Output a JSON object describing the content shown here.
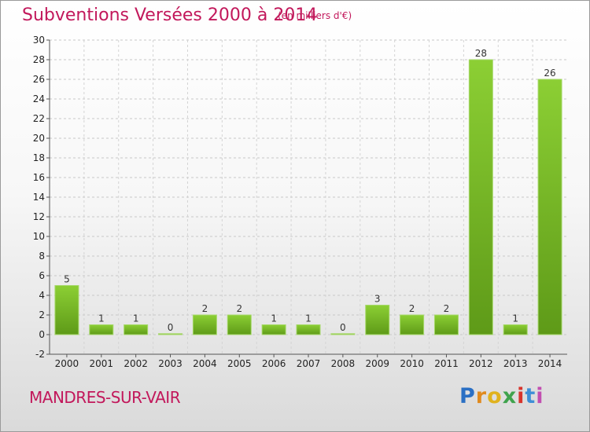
{
  "title": "Subventions Versées 2000 à 2014",
  "subtitle": "(en milliers d'€)",
  "commune": "MANDRES-SUR-VAIR",
  "logo": {
    "letters": [
      "P",
      "r",
      "o",
      "x",
      "i",
      "t",
      "i"
    ],
    "colors": [
      "#2a6fc4",
      "#e08a1e",
      "#e0b21e",
      "#3fa34d",
      "#d8342c",
      "#3f8fd6",
      "#c24fb0"
    ]
  },
  "colors": {
    "bar": "#7fbf2a",
    "bar_dark": "#5e9a18",
    "accent": "#c2185b"
  },
  "chart_data": {
    "type": "bar",
    "categories": [
      "2000",
      "2001",
      "2002",
      "2003",
      "2004",
      "2005",
      "2006",
      "2007",
      "2008",
      "2009",
      "2010",
      "2011",
      "2012",
      "2013",
      "2014"
    ],
    "values": [
      5,
      1,
      1,
      0,
      2,
      2,
      1,
      1,
      0,
      3,
      2,
      2,
      28,
      1,
      26
    ],
    "value_labels": [
      "5",
      "1",
      "1",
      "0",
      "2",
      "2",
      "1",
      "1",
      "0",
      "3",
      "2",
      "2",
      "28",
      "1",
      "26"
    ],
    "ylim": [
      -2,
      30
    ],
    "yticks": [
      -2,
      0,
      2,
      4,
      6,
      8,
      10,
      12,
      14,
      16,
      18,
      20,
      22,
      24,
      26,
      28,
      30
    ],
    "ytick_labels": [
      "-2",
      "0",
      "2",
      "4",
      "6",
      "8",
      "10",
      "12",
      "14",
      "16",
      "18",
      "20",
      "22",
      "24",
      "26",
      "28",
      "30"
    ],
    "grid": true
  }
}
